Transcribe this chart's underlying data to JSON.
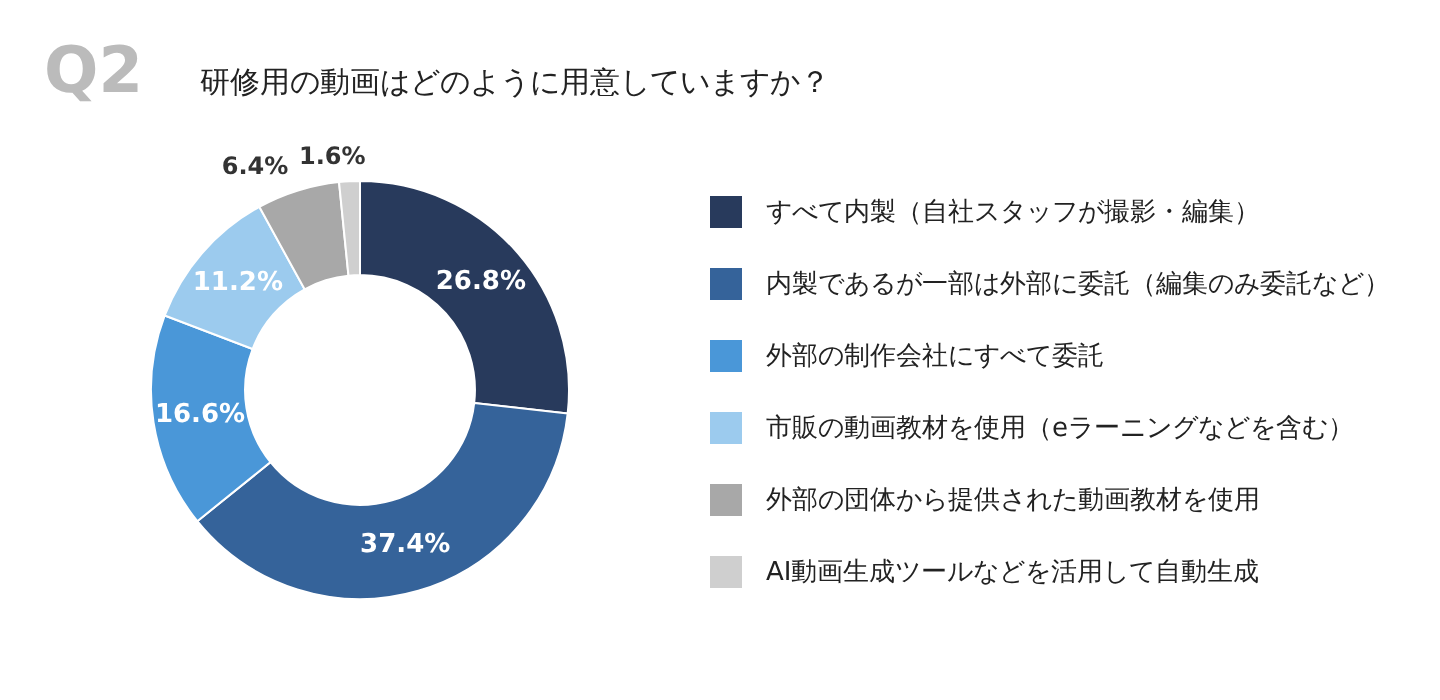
{
  "chart_data": {
    "type": "donut",
    "title": "研修用の動画はどのように用意していますか？",
    "annotations": [
      "Q2"
    ],
    "categories": [
      "すべて内製（自社スタッフが撮影・編集）",
      "内製であるが一部は外部に委託（編集のみ委託など）",
      "外部の制作会社にすべて委託",
      "市販の動画教材を使用（eラーニングなどを含む）",
      "外部の団体から提供された動画教材を使用",
      "AI動画生成ツールなどを活用して自動生成"
    ],
    "values": [
      26.8,
      37.4,
      16.6,
      11.2,
      6.4,
      1.6
    ],
    "colors": [
      "#283a5c",
      "#35639a",
      "#4a97d8",
      "#9ccbee",
      "#a8a8a8",
      "#cfcfcf"
    ],
    "value_labels": [
      "26.8%",
      "37.4%",
      "16.6%",
      "11.2%",
      "6.4%",
      "1.6%"
    ],
    "legend": "right"
  }
}
